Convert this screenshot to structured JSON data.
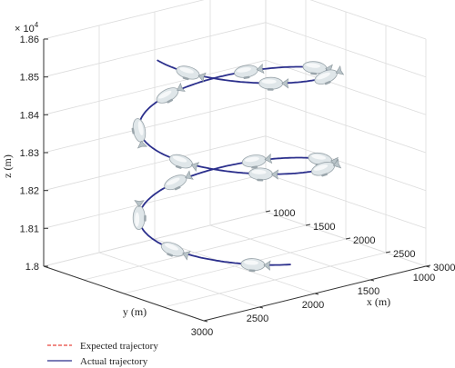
{
  "chart_data": {
    "type": "line",
    "projection": "3d",
    "grid": true,
    "legend_position": "bottom-left",
    "z_multiplier": "× 10",
    "z_multiplier_exp": "4",
    "axes": {
      "x": {
        "label": "x (m)",
        "ticks": [
          "1000",
          "1500",
          "2000",
          "2500",
          "3000"
        ],
        "range": [
          1000,
          3000
        ]
      },
      "y": {
        "label": "y (m)",
        "ticks": [
          "3000",
          "2500",
          "2000",
          "1500",
          "1000"
        ],
        "range": [
          1000,
          3000
        ]
      },
      "z": {
        "label": "z (m)",
        "ticks": [
          "1.8",
          "1.81",
          "1.82",
          "1.83",
          "1.84",
          "1.85",
          "1.86"
        ],
        "range": [
          1.8,
          1.86
        ]
      }
    },
    "series": [
      {
        "name": "Expected trajectory",
        "color": "#e8453c",
        "style": "dashed"
      },
      {
        "name": "Actual trajectory",
        "color": "#2b2f8c",
        "style": "solid"
      }
    ],
    "helix": {
      "center_x": 2000,
      "center_y": 2000,
      "radius": 700,
      "turns": 2.25,
      "z_start": 1.8055,
      "z_end": 1.8595
    }
  }
}
